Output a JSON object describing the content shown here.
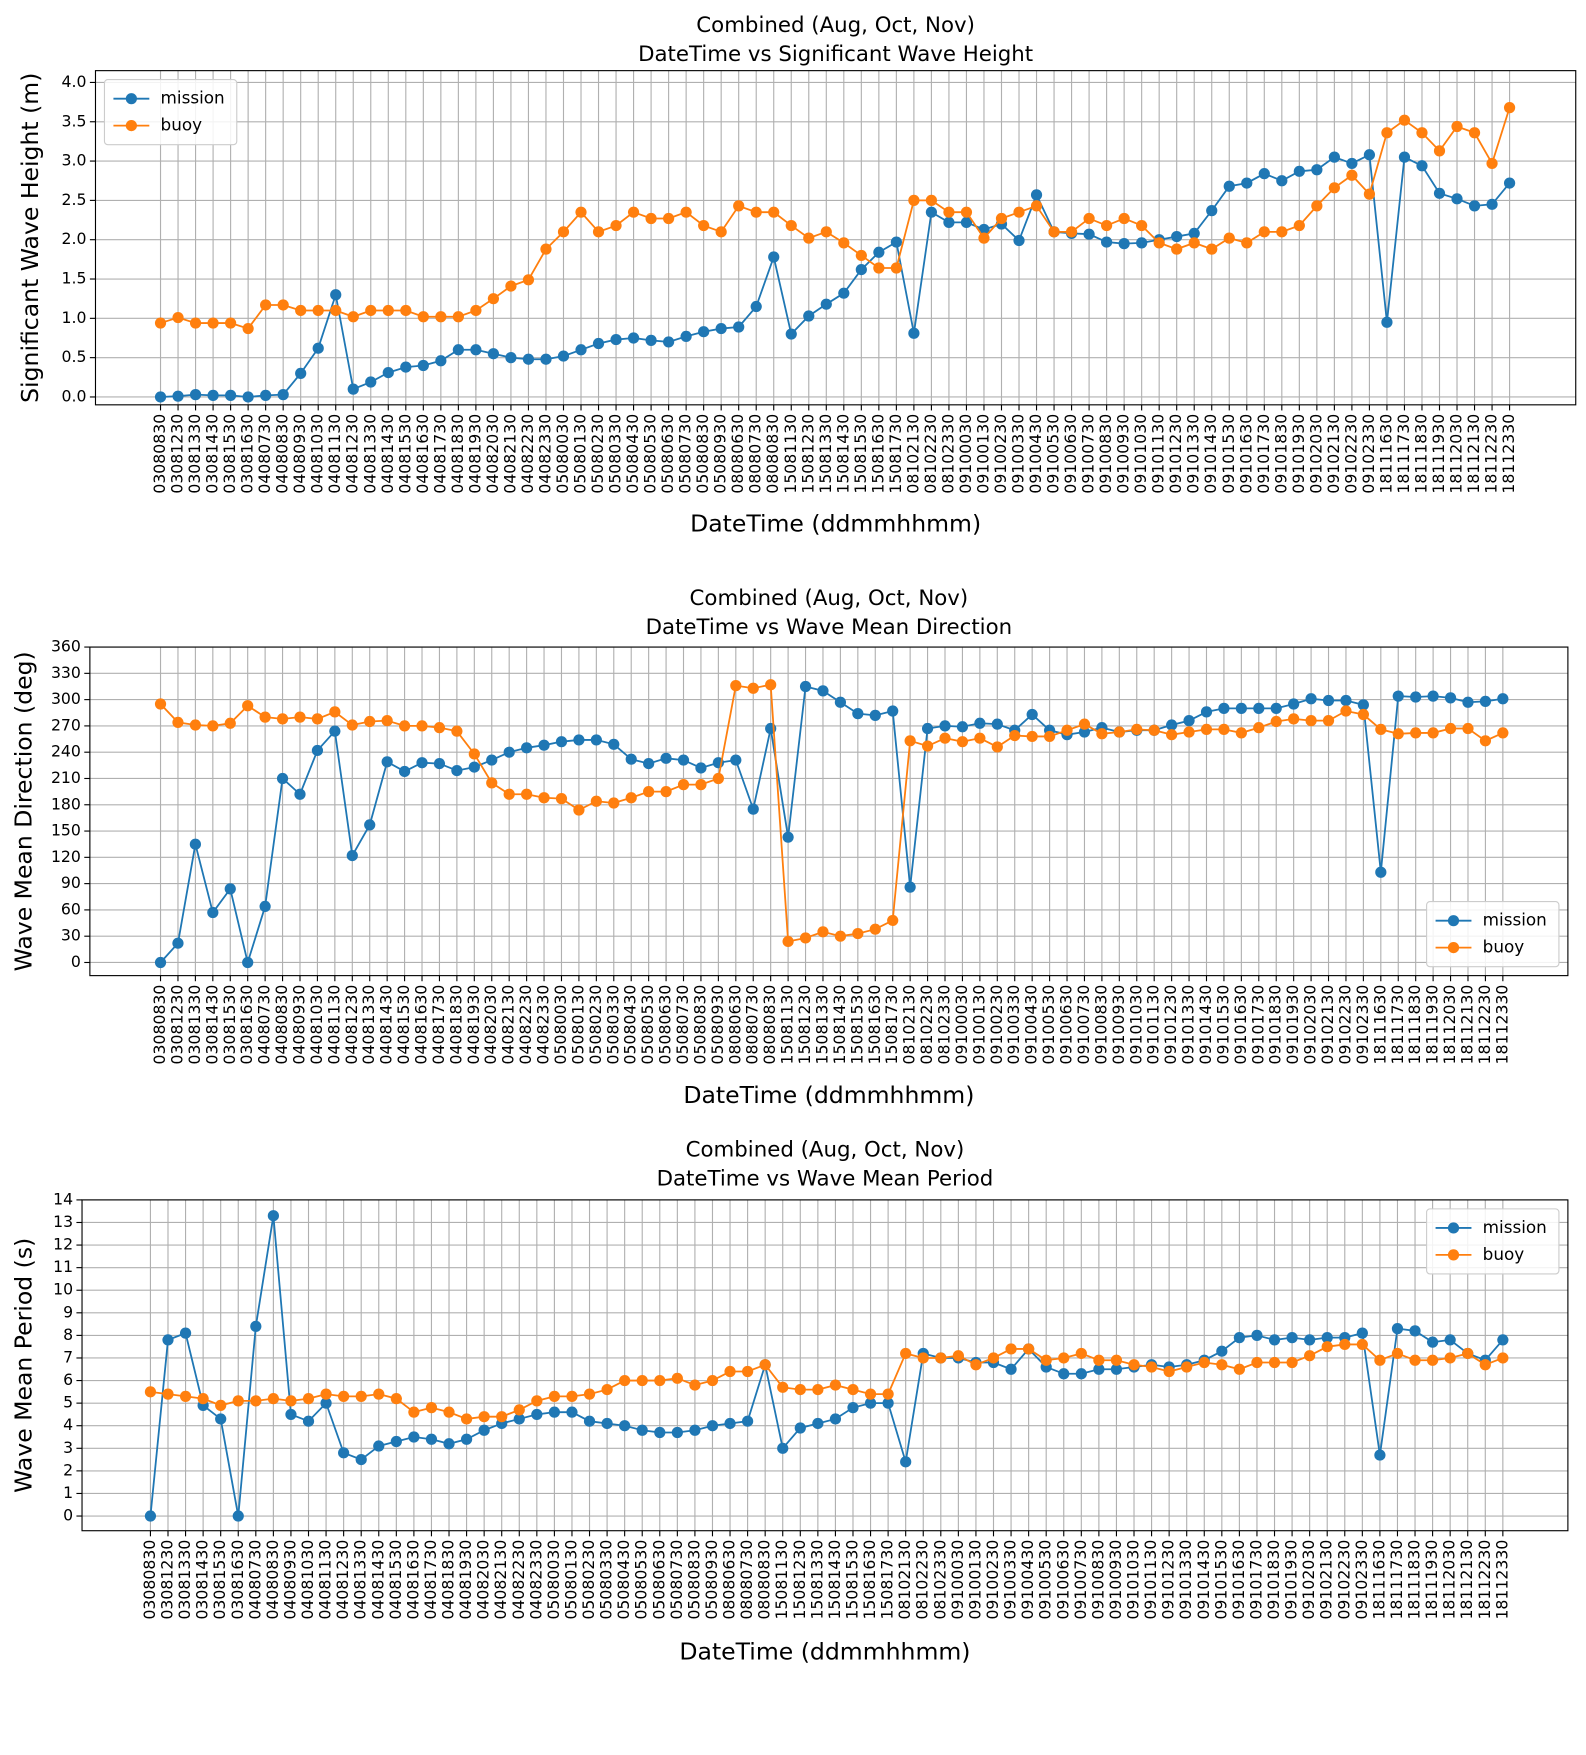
{
  "chart_data": [
    {
      "type": "line",
      "title": "Combined (Aug, Oct, Nov)",
      "subtitle": "DateTime vs Significant Wave Height",
      "xlabel": "DateTime (ddmmhhmm)",
      "ylabel": "Significant Wave Height (m)",
      "categories": [
        "03080830",
        "03081230",
        "03081330",
        "03081430",
        "03081530",
        "03081630",
        "04080730",
        "04080830",
        "04080930",
        "04081030",
        "04081130",
        "04081230",
        "04081330",
        "04081430",
        "04081530",
        "04081630",
        "04081730",
        "04081830",
        "04081930",
        "04082030",
        "04082130",
        "04082230",
        "04082330",
        "05080030",
        "05080130",
        "05080230",
        "05080330",
        "05080430",
        "05080530",
        "05080630",
        "05080730",
        "05080830",
        "05080930",
        "08080630",
        "08080730",
        "08080830",
        "15081130",
        "15081230",
        "15081330",
        "15081430",
        "15081530",
        "15081630",
        "15081730",
        "08102130",
        "08102230",
        "08102330",
        "09100030",
        "09100130",
        "09100230",
        "09100330",
        "09100430",
        "09100530",
        "09100630",
        "09100730",
        "09100830",
        "09100930",
        "09101030",
        "09101130",
        "09101230",
        "09101330",
        "09101430",
        "09101530",
        "09101630",
        "09101730",
        "09101830",
        "09101930",
        "09102030",
        "09102130",
        "09102230",
        "09102330",
        "18111630",
        "18111730",
        "18111830",
        "18111930",
        "18112030",
        "18112130",
        "18112230",
        "18112330"
      ],
      "series": [
        {
          "name": "mission",
          "color": "#1f77b4",
          "values": [
            0.0,
            0.01,
            0.03,
            0.02,
            0.02,
            0.0,
            0.02,
            0.03,
            0.3,
            0.62,
            1.3,
            0.1,
            0.19,
            0.31,
            0.38,
            0.4,
            0.46,
            0.6,
            0.6,
            0.55,
            0.5,
            0.48,
            0.48,
            0.52,
            0.6,
            0.68,
            0.73,
            0.75,
            0.72,
            0.7,
            0.77,
            0.83,
            0.87,
            0.89,
            1.15,
            1.78,
            0.8,
            1.03,
            1.18,
            1.32,
            1.62,
            1.84,
            1.97,
            0.81,
            2.35,
            2.22,
            2.22,
            2.13,
            2.2,
            1.99,
            2.57,
            2.1,
            2.08,
            2.07,
            1.97,
            1.95,
            1.96,
            2.0,
            2.04,
            2.08,
            2.37,
            2.68,
            2.72,
            2.84,
            2.75,
            2.87,
            2.89,
            3.05,
            2.97,
            3.08,
            0.95,
            3.05,
            2.94,
            2.59,
            2.52,
            2.43,
            2.45,
            2.72
          ]
        },
        {
          "name": "buoy",
          "color": "#ff7f0e",
          "values": [
            0.94,
            1.01,
            0.94,
            0.94,
            0.94,
            0.87,
            1.17,
            1.17,
            1.1,
            1.1,
            1.1,
            1.02,
            1.1,
            1.1,
            1.1,
            1.02,
            1.02,
            1.02,
            1.1,
            1.25,
            1.41,
            1.49,
            1.88,
            2.1,
            2.35,
            2.1,
            2.18,
            2.35,
            2.27,
            2.27,
            2.35,
            2.18,
            2.1,
            2.43,
            2.35,
            2.35,
            2.18,
            2.02,
            2.1,
            1.96,
            1.8,
            1.64,
            1.64,
            2.5,
            2.5,
            2.35,
            2.35,
            2.02,
            2.27,
            2.35,
            2.43,
            2.1,
            2.1,
            2.27,
            2.18,
            2.27,
            2.18,
            1.96,
            1.88,
            1.96,
            1.88,
            2.02,
            1.96,
            2.1,
            2.1,
            2.18,
            2.43,
            2.66,
            2.82,
            2.58,
            3.36,
            3.52,
            3.36,
            3.13,
            3.44,
            3.36,
            2.97,
            3.68
          ]
        }
      ],
      "ylim": [
        -0.1,
        4.15
      ],
      "yticks": [
        {
          "value": 0,
          "label": "0.0"
        },
        0.5,
        {
          "value": 1,
          "label": "1.0"
        },
        1.5,
        {
          "value": 2,
          "label": "2.0"
        },
        2.5,
        {
          "value": 3,
          "label": "3.0"
        },
        3.5,
        {
          "value": 4,
          "label": "4.0"
        }
      ],
      "grid": true,
      "legend": "upper left"
    },
    {
      "type": "line",
      "title": "Combined (Aug, Oct, Nov)",
      "subtitle": "DateTime vs Wave Mean Direction",
      "xlabel": "DateTime (ddmmhhmm)",
      "ylabel": "Wave Mean Direction (deg)",
      "categories": [
        "03080830",
        "03081230",
        "03081330",
        "03081430",
        "03081530",
        "03081630",
        "04080730",
        "04080830",
        "04080930",
        "04081030",
        "04081130",
        "04081230",
        "04081330",
        "04081430",
        "04081530",
        "04081630",
        "04081730",
        "04081830",
        "04081930",
        "04082030",
        "04082130",
        "04082230",
        "04082330",
        "05080030",
        "05080130",
        "05080230",
        "05080330",
        "05080430",
        "05080530",
        "05080630",
        "05080730",
        "05080830",
        "05080930",
        "08080630",
        "08080730",
        "08080830",
        "15081130",
        "15081230",
        "15081330",
        "15081430",
        "15081530",
        "15081630",
        "15081730",
        "08102130",
        "08102230",
        "08102330",
        "09100030",
        "09100130",
        "09100230",
        "09100330",
        "09100430",
        "09100530",
        "09100630",
        "09100730",
        "09100830",
        "09100930",
        "09101030",
        "09101130",
        "09101230",
        "09101330",
        "09101430",
        "09101530",
        "09101630",
        "09101730",
        "09101830",
        "09101930",
        "09102030",
        "09102130",
        "09102230",
        "09102330",
        "18111630",
        "18111730",
        "18111830",
        "18111930",
        "18112030",
        "18112130",
        "18112230",
        "18112330"
      ],
      "series": [
        {
          "name": "mission",
          "color": "#1f77b4",
          "values": [
            0,
            22,
            135,
            57,
            84,
            0,
            64,
            210,
            192,
            242,
            264,
            122,
            157,
            229,
            218,
            228,
            227,
            219,
            223,
            231,
            240,
            245,
            248,
            252,
            254,
            254,
            249,
            232,
            227,
            233,
            231,
            222,
            228,
            231,
            175,
            267,
            143,
            315,
            310,
            297,
            284,
            282,
            287,
            86,
            267,
            270,
            269,
            273,
            272,
            265,
            283,
            265,
            260,
            263,
            268,
            263,
            265,
            265,
            271,
            276,
            286,
            290,
            290,
            290,
            290,
            295,
            301,
            299,
            299,
            294,
            103,
            304,
            303,
            304,
            302,
            297,
            298,
            301
          ]
        },
        {
          "name": "buoy",
          "color": "#ff7f0e",
          "values": [
            295,
            274,
            271,
            270,
            273,
            293,
            280,
            278,
            280,
            278,
            286,
            271,
            275,
            276,
            270,
            270,
            268,
            264,
            238,
            205,
            192,
            192,
            188,
            187,
            174,
            184,
            182,
            188,
            195,
            195,
            203,
            203,
            210,
            316,
            313,
            317,
            24,
            28,
            35,
            30,
            33,
            38,
            48,
            253,
            247,
            256,
            252,
            256,
            246,
            259,
            258,
            258,
            265,
            272,
            261,
            263,
            266,
            265,
            260,
            263,
            266,
            266,
            262,
            268,
            275,
            278,
            276,
            276,
            287,
            283,
            266,
            261,
            262,
            262,
            267,
            267,
            253,
            262
          ]
        }
      ],
      "ylim": [
        -15,
        360
      ],
      "yticks": [
        0,
        30,
        60,
        90,
        120,
        150,
        180,
        210,
        240,
        270,
        300,
        330,
        360
      ],
      "grid": true,
      "legend": "lower right"
    },
    {
      "type": "line",
      "title": "Combined (Aug, Oct, Nov)",
      "subtitle": "DateTime vs Wave Mean Period",
      "xlabel": "DateTime (ddmmhhmm)",
      "ylabel": "Wave Mean Period (s)",
      "categories": [
        "03080830",
        "03081230",
        "03081330",
        "03081430",
        "03081530",
        "03081630",
        "04080730",
        "04080830",
        "04080930",
        "04081030",
        "04081130",
        "04081230",
        "04081330",
        "04081430",
        "04081530",
        "04081630",
        "04081730",
        "04081830",
        "04081930",
        "04082030",
        "04082130",
        "04082230",
        "04082330",
        "05080030",
        "05080130",
        "05080230",
        "05080330",
        "05080430",
        "05080530",
        "05080630",
        "05080730",
        "05080830",
        "05080930",
        "08080630",
        "08080730",
        "08080830",
        "15081130",
        "15081230",
        "15081330",
        "15081430",
        "15081530",
        "15081630",
        "15081730",
        "08102130",
        "08102230",
        "08102330",
        "09100030",
        "09100130",
        "09100230",
        "09100330",
        "09100430",
        "09100530",
        "09100630",
        "09100730",
        "09100830",
        "09100930",
        "09101030",
        "09101130",
        "09101230",
        "09101330",
        "09101430",
        "09101530",
        "09101630",
        "09101730",
        "09101830",
        "09101930",
        "09102030",
        "09102130",
        "09102230",
        "09102330",
        "18111630",
        "18111730",
        "18111830",
        "18111930",
        "18112030",
        "18112130",
        "18112230",
        "18112330"
      ],
      "series": [
        {
          "name": "mission",
          "color": "#1f77b4",
          "values": [
            0,
            7.8,
            8.1,
            4.9,
            4.3,
            0,
            8.4,
            13.3,
            4.5,
            4.2,
            5.0,
            2.8,
            2.5,
            3.1,
            3.3,
            3.5,
            3.4,
            3.2,
            3.4,
            3.8,
            4.1,
            4.3,
            4.5,
            4.6,
            4.6,
            4.2,
            4.1,
            4.0,
            3.8,
            3.7,
            3.7,
            3.8,
            4.0,
            4.1,
            4.2,
            6.7,
            3.0,
            3.9,
            4.1,
            4.3,
            4.8,
            5.0,
            5.0,
            2.4,
            7.2,
            7.0,
            7.0,
            6.8,
            6.8,
            6.5,
            7.4,
            6.6,
            6.3,
            6.3,
            6.5,
            6.5,
            6.6,
            6.7,
            6.6,
            6.7,
            6.9,
            7.3,
            7.9,
            8.0,
            7.8,
            7.9,
            7.8,
            7.9,
            7.9,
            8.1,
            2.7,
            8.3,
            8.2,
            7.7,
            7.8,
            7.2,
            6.9,
            7.8
          ]
        },
        {
          "name": "buoy",
          "color": "#ff7f0e",
          "values": [
            5.5,
            5.4,
            5.3,
            5.2,
            4.9,
            5.1,
            5.1,
            5.2,
            5.1,
            5.2,
            5.4,
            5.3,
            5.3,
            5.4,
            5.2,
            4.6,
            4.8,
            4.6,
            4.3,
            4.4,
            4.4,
            4.7,
            5.1,
            5.3,
            5.3,
            5.4,
            5.6,
            6.0,
            6.0,
            6.0,
            6.1,
            5.8,
            6.0,
            6.4,
            6.4,
            6.7,
            5.7,
            5.6,
            5.6,
            5.8,
            5.6,
            5.4,
            5.4,
            7.2,
            7.0,
            7.0,
            7.1,
            6.7,
            7.0,
            7.4,
            7.4,
            6.9,
            7.0,
            7.2,
            6.9,
            6.9,
            6.7,
            6.6,
            6.4,
            6.6,
            6.8,
            6.7,
            6.5,
            6.8,
            6.8,
            6.8,
            7.1,
            7.5,
            7.6,
            7.6,
            6.9,
            7.2,
            6.9,
            6.9,
            7.0,
            7.2,
            6.7,
            7.0
          ]
        }
      ],
      "ylim": [
        -0.65,
        14
      ],
      "yticks": [
        0,
        1,
        2,
        3,
        4,
        5,
        6,
        7,
        8,
        9,
        10,
        11,
        12,
        13,
        14
      ],
      "grid": true,
      "legend": "upper right"
    }
  ]
}
